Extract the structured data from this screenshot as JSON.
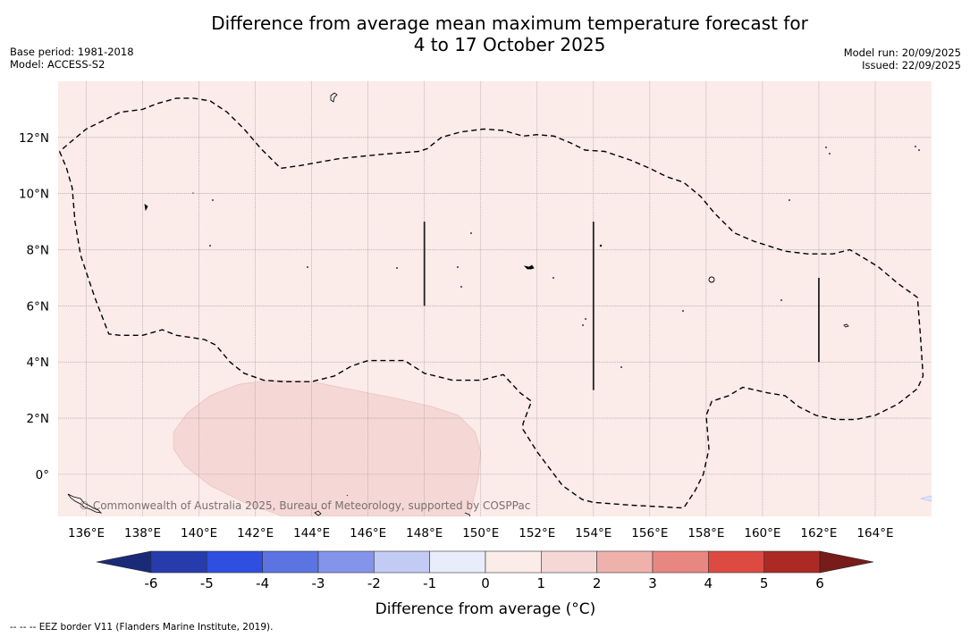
{
  "header": {
    "title_line1": "Difference from average mean maximum temperature forecast for",
    "title_line2": "4 to 17 October 2025",
    "base_period": "Base period: 1981-2018",
    "model": "Model: ACCESS-S2",
    "model_run": "Model run: 20/09/2025",
    "issued": "Issued: 22/09/2025"
  },
  "footer": {
    "eez_note": "--  --  -- EEZ border V11 (Flanders Marine Institute, 2019).",
    "copyright": "© Commonwealth of Australia 2025, Bureau of Meteorology, supported by COSPPac"
  },
  "chart_data": {
    "type": "heatmap",
    "title": "Difference from average mean maximum temperature forecast for 4 to 17 October 2025",
    "projection": "PlateCarree",
    "extent": {
      "lon": [
        135.0,
        166.0
      ],
      "lat": [
        -1.5,
        14.0
      ]
    },
    "grid": true,
    "x_ticks": [
      136,
      138,
      140,
      142,
      144,
      146,
      148,
      150,
      152,
      154,
      156,
      158,
      160,
      162,
      164
    ],
    "x_tick_labels": [
      "136°E",
      "138°E",
      "140°E",
      "142°E",
      "144°E",
      "146°E",
      "148°E",
      "150°E",
      "152°E",
      "154°E",
      "156°E",
      "158°E",
      "160°E",
      "162°E",
      "164°E"
    ],
    "y_ticks": [
      0,
      2,
      4,
      6,
      8,
      10,
      12
    ],
    "y_tick_labels": [
      "0°",
      "2°N",
      "4°N",
      "6°N",
      "8°N",
      "10°N",
      "12°N"
    ],
    "background_category": "0 to 1",
    "background_color": "#fbebe9",
    "regions": [
      {
        "name": "warm-anomaly-1-to-2",
        "category": "1 to 2",
        "color": "#f5d8d5",
        "polygon_lonlat": [
          [
            139.1,
            1.5
          ],
          [
            139.6,
            2.2
          ],
          [
            140.4,
            2.8
          ],
          [
            141.4,
            3.2
          ],
          [
            142.5,
            3.35
          ],
          [
            144.0,
            3.3
          ],
          [
            145.5,
            3.0
          ],
          [
            147.0,
            2.7
          ],
          [
            148.3,
            2.4
          ],
          [
            149.2,
            2.1
          ],
          [
            149.8,
            1.5
          ],
          [
            150.0,
            0.8
          ],
          [
            149.9,
            -0.2
          ],
          [
            149.6,
            -1.5
          ],
          [
            145.0,
            -1.5
          ],
          [
            143.0,
            -1.5
          ],
          [
            141.6,
            -1.0
          ],
          [
            140.4,
            -0.4
          ],
          [
            139.5,
            0.3
          ],
          [
            139.1,
            0.9
          ]
        ]
      }
    ],
    "eez_boundary_lonlat": [
      [
        [
          135.05,
          11.5
        ],
        [
          135.3,
          10.9
        ],
        [
          135.5,
          10.2
        ],
        [
          135.6,
          9.0
        ],
        [
          135.8,
          7.8
        ],
        [
          136.3,
          6.3
        ],
        [
          136.8,
          5.0
        ],
        [
          137.2,
          4.95
        ],
        [
          138.0,
          4.95
        ],
        [
          138.7,
          5.15
        ],
        [
          139.2,
          4.95
        ],
        [
          140.2,
          4.8
        ],
        [
          140.6,
          4.6
        ],
        [
          141.1,
          4.0
        ],
        [
          141.6,
          3.6
        ],
        [
          142.3,
          3.35
        ],
        [
          143.0,
          3.3
        ],
        [
          144.0,
          3.3
        ],
        [
          144.8,
          3.5
        ],
        [
          145.4,
          3.85
        ],
        [
          146.0,
          4.05
        ],
        [
          147.3,
          4.05
        ],
        [
          148.0,
          3.6
        ],
        [
          149.0,
          3.35
        ],
        [
          150.0,
          3.35
        ],
        [
          150.8,
          3.55
        ],
        [
          151.4,
          2.9
        ],
        [
          151.8,
          2.6
        ],
        [
          151.5,
          1.8
        ],
        [
          151.5,
          1.6
        ],
        [
          152.0,
          0.8
        ],
        [
          152.9,
          -0.4
        ],
        [
          153.6,
          -0.9
        ],
        [
          154.0,
          -1.0
        ],
        [
          155.3,
          -1.1
        ],
        [
          157.2,
          -1.2
        ],
        [
          157.6,
          -0.6
        ],
        [
          157.9,
          0.0
        ],
        [
          158.1,
          0.9
        ],
        [
          158.0,
          2.1
        ],
        [
          158.2,
          2.6
        ],
        [
          158.8,
          2.8
        ],
        [
          159.3,
          3.1
        ],
        [
          160.2,
          2.9
        ],
        [
          160.8,
          2.8
        ],
        [
          161.3,
          2.4
        ],
        [
          161.9,
          2.1
        ],
        [
          162.6,
          1.95
        ],
        [
          163.3,
          1.95
        ],
        [
          164.0,
          2.1
        ],
        [
          164.8,
          2.5
        ],
        [
          165.5,
          3.05
        ],
        [
          165.7,
          3.5
        ],
        [
          165.6,
          5.0
        ],
        [
          165.5,
          6.3
        ],
        [
          164.8,
          6.8
        ],
        [
          164.1,
          7.4
        ],
        [
          163.6,
          7.7
        ],
        [
          163.1,
          8.0
        ],
        [
          162.5,
          7.85
        ],
        [
          161.6,
          7.85
        ],
        [
          160.8,
          7.95
        ],
        [
          159.7,
          8.3
        ],
        [
          159.0,
          8.6
        ],
        [
          158.3,
          9.3
        ],
        [
          157.8,
          9.9
        ],
        [
          157.2,
          10.4
        ],
        [
          156.6,
          10.6
        ],
        [
          156.0,
          10.9
        ],
        [
          155.3,
          11.2
        ],
        [
          154.4,
          11.5
        ],
        [
          153.7,
          11.55
        ],
        [
          153.2,
          11.8
        ],
        [
          152.6,
          12.05
        ],
        [
          152.0,
          12.1
        ],
        [
          151.5,
          12.05
        ],
        [
          150.8,
          12.25
        ],
        [
          150.1,
          12.3
        ],
        [
          149.3,
          12.2
        ],
        [
          148.6,
          12.0
        ],
        [
          148.1,
          11.6
        ],
        [
          147.8,
          11.5
        ],
        [
          146.5,
          11.4
        ],
        [
          145.0,
          11.25
        ],
        [
          143.6,
          11.0
        ],
        [
          142.9,
          10.9
        ],
        [
          142.2,
          11.6
        ],
        [
          141.6,
          12.3
        ],
        [
          141.0,
          12.9
        ],
        [
          140.4,
          13.3
        ],
        [
          139.8,
          13.4
        ],
        [
          139.2,
          13.4
        ],
        [
          138.5,
          13.2
        ],
        [
          138.0,
          13.0
        ],
        [
          137.2,
          12.9
        ],
        [
          136.6,
          12.6
        ],
        [
          136.0,
          12.3
        ],
        [
          135.4,
          11.8
        ],
        [
          135.05,
          11.5
        ]
      ]
    ],
    "boundary_lines_lonlat": [
      [
        [
          148.0,
          9.0
        ],
        [
          148.0,
          6.0
        ]
      ],
      [
        [
          154.0,
          9.0
        ],
        [
          154.0,
          3.0
        ]
      ],
      [
        [
          162.0,
          7.0
        ],
        [
          162.0,
          4.0
        ]
      ]
    ],
    "colorbar": {
      "label": "Difference from average (°C)",
      "ticks": [
        -6,
        -5,
        -4,
        -3,
        -2,
        -1,
        0,
        1,
        2,
        3,
        4,
        5,
        6
      ],
      "tick_labels": [
        "-6",
        "-5",
        "-4",
        "-3",
        "-2",
        "-1",
        "0",
        "1",
        "2",
        "3",
        "4",
        "5",
        "6"
      ],
      "bins": [
        {
          "range": "below -6",
          "color": "#1b2a78"
        },
        {
          "range": "-6 to -5",
          "color": "#263cad"
        },
        {
          "range": "-5 to -4",
          "color": "#2e4fe0"
        },
        {
          "range": "-4 to -3",
          "color": "#5b74e2"
        },
        {
          "range": "-3 to -2",
          "color": "#8394ea"
        },
        {
          "range": "-2 to -1",
          "color": "#c2cbf4"
        },
        {
          "range": "-1 to 0",
          "color": "#e9ecfb"
        },
        {
          "range": "0 to 1",
          "color": "#fbebe9"
        },
        {
          "range": "1 to 2",
          "color": "#f5d8d5"
        },
        {
          "range": "2 to 3",
          "color": "#efb1ac"
        },
        {
          "range": "3 to 4",
          "color": "#e88782"
        },
        {
          "range": "4 to 5",
          "color": "#dc4a42"
        },
        {
          "range": "5 to 6",
          "color": "#ac2a24"
        },
        {
          "range": "above 6",
          "color": "#771c18"
        }
      ],
      "extend": "both"
    }
  }
}
